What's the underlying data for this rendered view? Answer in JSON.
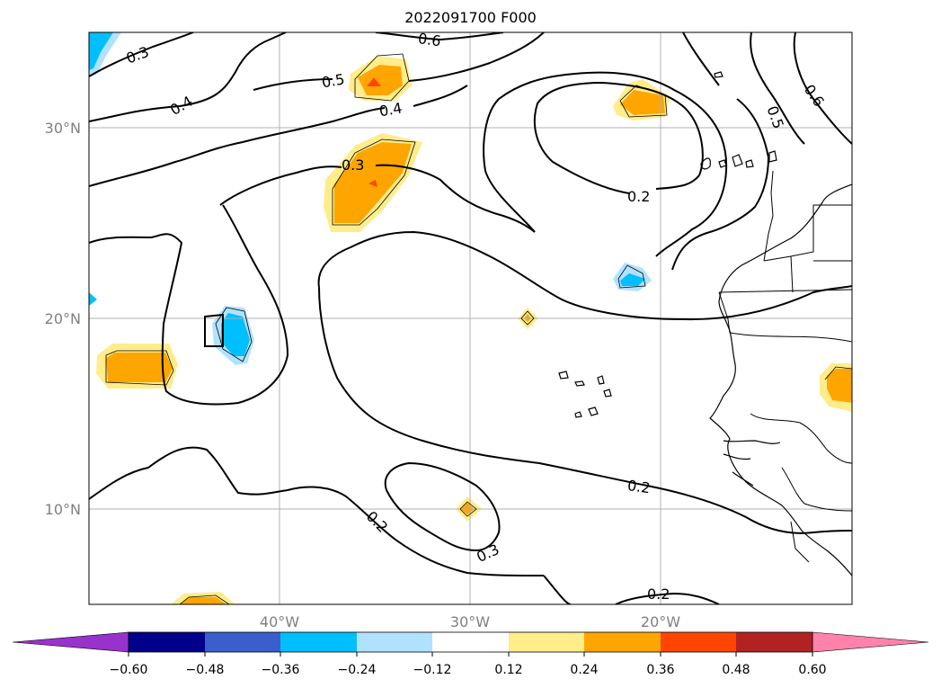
{
  "title": "2022091700 F000",
  "axes": {
    "lat_labels": [
      "30°N",
      "20°N",
      "10°N"
    ],
    "lon_labels": [
      "40°W",
      "30°W",
      "20°W"
    ]
  },
  "contour_labels": [
    "0.3",
    "0.4",
    "0.5",
    "0.6",
    "0.4",
    "0.3",
    "0.5",
    "0.6",
    "0.2",
    "0.2",
    "0.2",
    "0.3",
    "0.2"
  ],
  "colorbar": {
    "ticks": [
      "−0.60",
      "−0.48",
      "−0.36",
      "−0.24",
      "−0.12",
      "0.12",
      "0.24",
      "0.36",
      "0.48",
      "0.60"
    ],
    "colors": [
      "#9932cc",
      "#00008b",
      "#3a5fcd",
      "#00bfff",
      "#b0e2ff",
      "#ffffff",
      "#ffec8b",
      "#ffa500",
      "#ff4500",
      "#b22222",
      "#ff82ab"
    ]
  }
}
